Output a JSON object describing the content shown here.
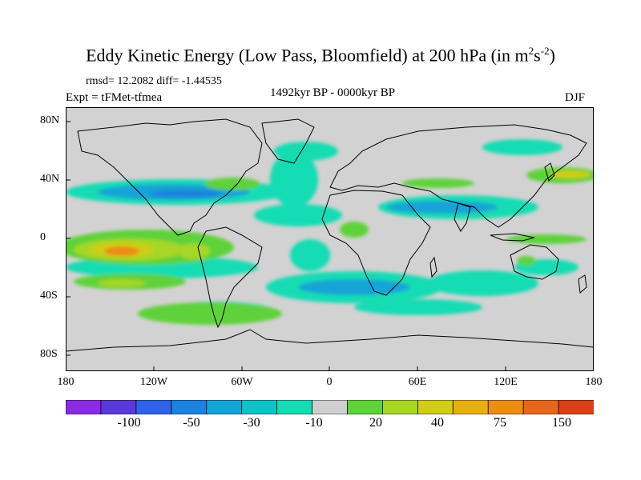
{
  "title": {
    "main": "Eddy Kinetic Energy (Low Pass, Bloomfield) at 200 hPa (in m",
    "sup1": "2",
    "mid": "s",
    "sup2": "-2",
    "end": ")"
  },
  "stats": "rmsd= 12.2082 diff= -1.44535",
  "experiment": "Expt = tFMet-tfmea",
  "period": "1492kyr BP - 0000kyr BP",
  "season": "DJF",
  "y_axis_labels": [
    "80N",
    "40N",
    "0",
    "40S",
    "80S"
  ],
  "x_axis_labels": [
    "180",
    "120W",
    "60W",
    "0",
    "60E",
    "120E",
    "180"
  ],
  "colorbar": {
    "labels": [
      "-100",
      "-50",
      "-30",
      "-10",
      "20",
      "40",
      "75",
      "150"
    ],
    "colors": [
      "#8a2be2",
      "#5a3ad6",
      "#2f62e6",
      "#1c82de",
      "#16a4d6",
      "#0ec3c8",
      "#16dcb4",
      "#cfcfcf",
      "#5fd23a",
      "#a6d626",
      "#d0cc18",
      "#e6b010",
      "#eb8d12",
      "#e6661a",
      "#d84018"
    ]
  },
  "map": {
    "land_outline_color": "#000000",
    "zero_band_color": "#d2d2d2",
    "lon_range": [
      -180,
      180
    ],
    "lat_range": [
      -90,
      90
    ]
  }
}
